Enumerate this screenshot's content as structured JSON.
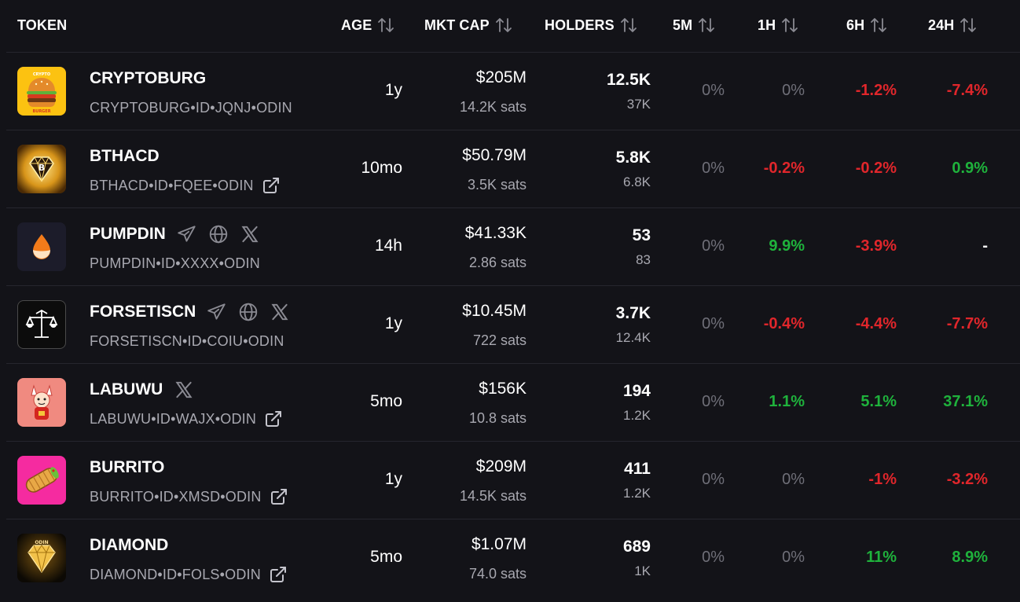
{
  "header": {
    "token": "TOKEN",
    "age": "AGE",
    "mktcap": "MKT CAP",
    "holders": "HOLDERS",
    "m5": "5M",
    "h1": "1H",
    "h6": "6H",
    "h24": "24H"
  },
  "colors": {
    "background": "#131318",
    "negative": "#e0262b",
    "positive": "#1fb23c",
    "neutral": "#6f6f78",
    "muted_text": "#a8a8b0"
  },
  "rows": [
    {
      "name": "CRYPTOBURG",
      "id": "CRYPTOBURG•ID•JQNJ•ODIN",
      "avatar_icon": "burger-icon",
      "socials": [],
      "external_link": false,
      "age": "1y",
      "mktcap": "$205M",
      "sats": "14.2K sats",
      "holders": "12.5K",
      "holders_sub": "37K",
      "m5": {
        "value": "0%",
        "tone": "neutral"
      },
      "h1": {
        "value": "0%",
        "tone": "neutral"
      },
      "h6": {
        "value": "-1.2%",
        "tone": "neg"
      },
      "h24": {
        "value": "-7.4%",
        "tone": "neg"
      }
    },
    {
      "name": "BTHACD",
      "id": "BTHACD•ID•FQEE•ODIN",
      "avatar_icon": "bitcoin-diamond-icon",
      "socials": [],
      "external_link": true,
      "age": "10mo",
      "mktcap": "$50.79M",
      "sats": "3.5K sats",
      "holders": "5.8K",
      "holders_sub": "6.8K",
      "m5": {
        "value": "0%",
        "tone": "neutral"
      },
      "h1": {
        "value": "-0.2%",
        "tone": "neg"
      },
      "h6": {
        "value": "-0.2%",
        "tone": "neg"
      },
      "h24": {
        "value": "0.9%",
        "tone": "pos"
      }
    },
    {
      "name": "PUMPDIN",
      "id": "PUMPDIN•ID•XXXX•ODIN",
      "avatar_icon": "flame-drop-icon",
      "socials": [
        "telegram-icon",
        "globe-icon",
        "x-icon"
      ],
      "external_link": false,
      "age": "14h",
      "mktcap": "$41.33K",
      "sats": "2.86 sats",
      "holders": "53",
      "holders_sub": "83",
      "m5": {
        "value": "0%",
        "tone": "neutral"
      },
      "h1": {
        "value": "9.9%",
        "tone": "pos"
      },
      "h6": {
        "value": "-3.9%",
        "tone": "neg"
      },
      "h24": {
        "value": "-",
        "tone": "dash"
      }
    },
    {
      "name": "FORSETISCN",
      "id": "FORSETISCN•ID•COIU•ODIN",
      "avatar_icon": "scales-icon",
      "socials": [
        "telegram-icon",
        "globe-icon",
        "x-icon"
      ],
      "external_link": false,
      "age": "1y",
      "mktcap": "$10.45M",
      "sats": "722 sats",
      "holders": "3.7K",
      "holders_sub": "12.4K",
      "m5": {
        "value": "0%",
        "tone": "neutral"
      },
      "h1": {
        "value": "-0.4%",
        "tone": "neg"
      },
      "h6": {
        "value": "-4.4%",
        "tone": "neg"
      },
      "h24": {
        "value": "-7.7%",
        "tone": "neg"
      }
    },
    {
      "name": "LABUWU",
      "id": "LABUWU•ID•WAJX•ODIN",
      "avatar_icon": "labubu-character-icon",
      "socials": [
        "x-icon"
      ],
      "external_link": true,
      "age": "5mo",
      "mktcap": "$156K",
      "sats": "10.8 sats",
      "holders": "194",
      "holders_sub": "1.2K",
      "m5": {
        "value": "0%",
        "tone": "neutral"
      },
      "h1": {
        "value": "1.1%",
        "tone": "pos"
      },
      "h6": {
        "value": "5.1%",
        "tone": "pos"
      },
      "h24": {
        "value": "37.1%",
        "tone": "pos"
      }
    },
    {
      "name": "BURRITO",
      "id": "BURRITO•ID•XMSD•ODIN",
      "avatar_icon": "burrito-icon",
      "socials": [],
      "external_link": true,
      "age": "1y",
      "mktcap": "$209M",
      "sats": "14.5K sats",
      "holders": "411",
      "holders_sub": "1.2K",
      "m5": {
        "value": "0%",
        "tone": "neutral"
      },
      "h1": {
        "value": "0%",
        "tone": "neutral"
      },
      "h6": {
        "value": "-1%",
        "tone": "neg"
      },
      "h24": {
        "value": "-3.2%",
        "tone": "neg"
      }
    },
    {
      "name": "DIAMOND",
      "id": "DIAMOND•ID•FOLS•ODIN",
      "avatar_icon": "gold-diamond-icon",
      "socials": [],
      "external_link": true,
      "age": "5mo",
      "mktcap": "$1.07M",
      "sats": "74.0 sats",
      "holders": "689",
      "holders_sub": "1K",
      "m5": {
        "value": "0%",
        "tone": "neutral"
      },
      "h1": {
        "value": "0%",
        "tone": "neutral"
      },
      "h6": {
        "value": "11%",
        "tone": "pos"
      },
      "h24": {
        "value": "8.9%",
        "tone": "pos"
      }
    }
  ]
}
